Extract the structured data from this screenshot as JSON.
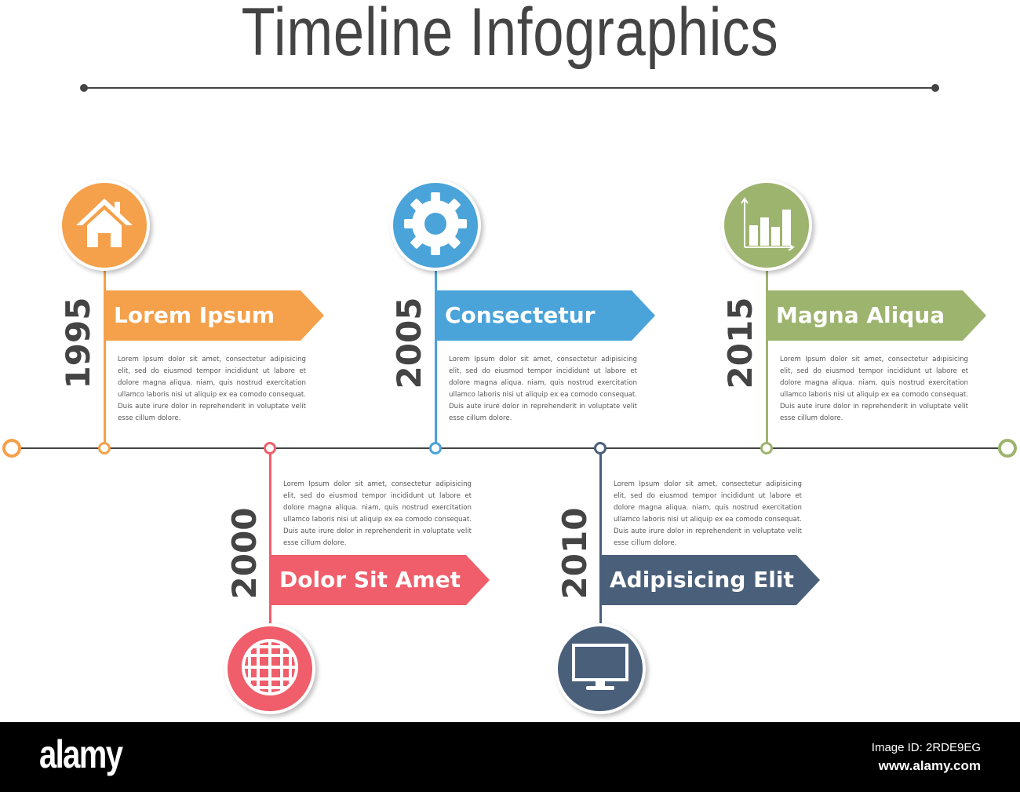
{
  "title": "Timeline Infographics",
  "paragraph_text": "Lorem Ipsum dolor sit amet, consectetur adipisicing elit, sed do eiusmod tempor incididunt ut labore et dolore magna aliqua. niam, quis nostrud exercitation ullamco laboris nisi ut aliquip ex ea comodo consequat. Duis aute irure dolor in reprehenderit in voluptate velit esse cillum dolore.",
  "items": [
    {
      "year": "1995",
      "label": "Lorem Ipsum",
      "color": "#f5a04a",
      "icon": "house-icon",
      "position": "top"
    },
    {
      "year": "2000",
      "label": "Dolor Sit Amet",
      "color": "#ef5e6a",
      "icon": "globe-icon",
      "position": "bottom"
    },
    {
      "year": "2005",
      "label": "Consectetur",
      "color": "#4aa3d9",
      "icon": "gear-icon",
      "position": "top"
    },
    {
      "year": "2010",
      "label": "Adipisicing Elit",
      "color": "#4a5f7a",
      "icon": "monitor-icon",
      "position": "bottom"
    },
    {
      "year": "2015",
      "label": "Magna Aliqua",
      "color": "#9db46e",
      "icon": "bar-chart-icon",
      "position": "top"
    }
  ],
  "footer": {
    "logo": "alamy",
    "image_id": "Image ID: 2RDE9EG",
    "url": "www.alamy.com"
  }
}
